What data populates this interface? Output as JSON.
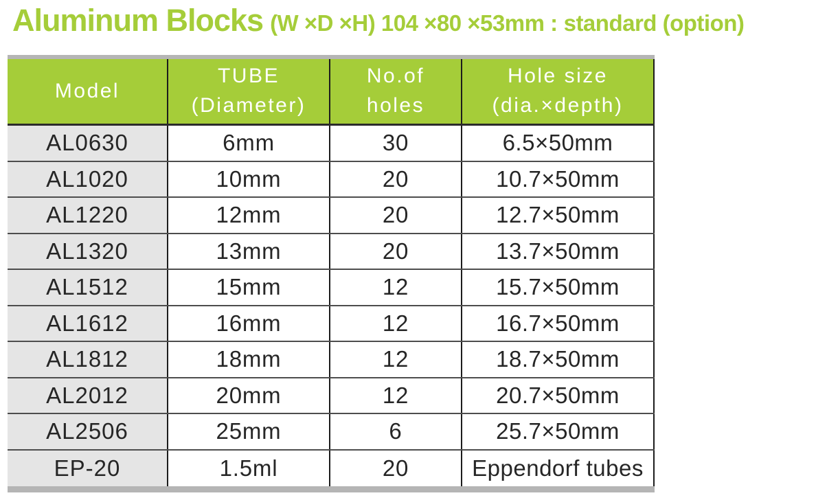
{
  "title": {
    "main": "Aluminum Blocks",
    "dims": "(W ×D ×H) 104 ×80 ×53mm :",
    "suffix": "standard (option)"
  },
  "colors": {
    "green": "#a5cd39",
    "strip_gray": "#b5b5b5",
    "model_column_bg": "#e5e5e5",
    "header_text": "#ffffff",
    "body_text": "#262626"
  },
  "table": {
    "columns": [
      {
        "id": "model",
        "label_lines": [
          "Model"
        ]
      },
      {
        "id": "tube",
        "label_lines": [
          "TUBE",
          "(Diameter)"
        ]
      },
      {
        "id": "holes",
        "label_lines": [
          "No.of",
          "holes"
        ]
      },
      {
        "id": "hole_size",
        "label_lines": [
          "Hole size",
          "(dia.×depth)"
        ]
      }
    ],
    "rows": [
      {
        "model": "AL0630",
        "tube": "6mm",
        "holes": "30",
        "hole_size": "6.5×50mm"
      },
      {
        "model": "AL1020",
        "tube": "10mm",
        "holes": "20",
        "hole_size": "10.7×50mm"
      },
      {
        "model": "AL1220",
        "tube": "12mm",
        "holes": "20",
        "hole_size": "12.7×50mm"
      },
      {
        "model": "AL1320",
        "tube": "13mm",
        "holes": "20",
        "hole_size": "13.7×50mm"
      },
      {
        "model": "AL1512",
        "tube": "15mm",
        "holes": "12",
        "hole_size": "15.7×50mm"
      },
      {
        "model": "AL1612",
        "tube": "16mm",
        "holes": "12",
        "hole_size": "16.7×50mm"
      },
      {
        "model": "AL1812",
        "tube": "18mm",
        "holes": "12",
        "hole_size": "18.7×50mm"
      },
      {
        "model": "AL2012",
        "tube": "20mm",
        "holes": "12",
        "hole_size": "20.7×50mm"
      },
      {
        "model": "AL2506",
        "tube": "25mm",
        "holes": "6",
        "hole_size": "25.7×50mm"
      },
      {
        "model": "EP-20",
        "tube": "1.5ml",
        "holes": "20",
        "hole_size": "Eppendorf tubes"
      }
    ]
  }
}
